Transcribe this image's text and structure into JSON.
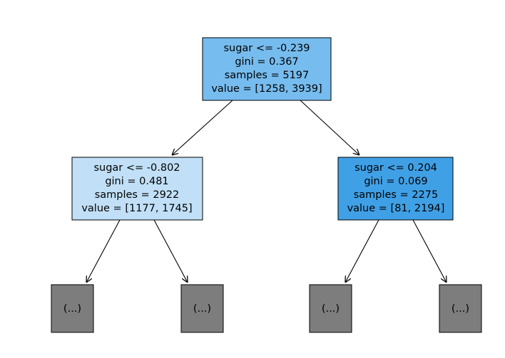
{
  "tree": {
    "root": {
      "lines": [
        "sugar <= -0.239",
        "gini = 0.367",
        "samples = 5197",
        "value = [1258, 3939]"
      ],
      "fill": "#76bcef"
    },
    "left": {
      "lines": [
        "sugar <= -0.802",
        "gini = 0.481",
        "samples = 2922",
        "value = [1177, 1745]"
      ],
      "fill": "#c1e0f7"
    },
    "right": {
      "lines": [
        "sugar <= 0.204",
        "gini = 0.069",
        "samples = 2275",
        "value = [81, 2194]"
      ],
      "fill": "#40a0e6"
    },
    "truncated": {
      "label": "(...)",
      "fill": "#7d7d7d",
      "count": 4
    }
  }
}
